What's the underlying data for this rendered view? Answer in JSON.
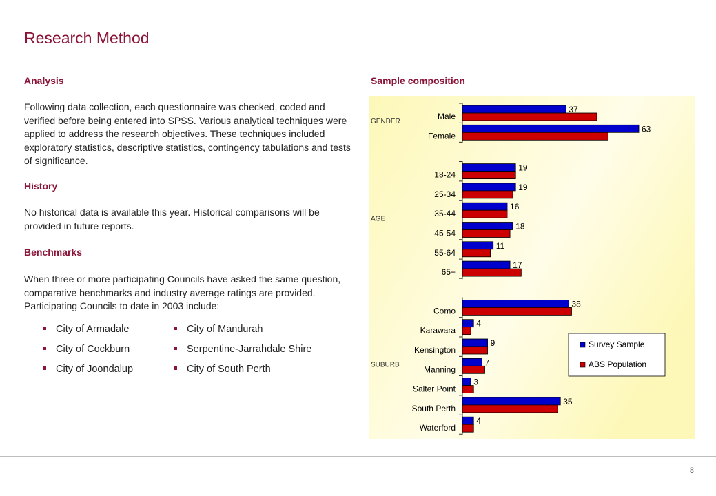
{
  "page": {
    "title": "Research Method",
    "page_number": "8"
  },
  "left": {
    "analysis_heading": "Analysis",
    "analysis_text": "Following data collection, each questionnaire was checked, coded and verified before being entered into SPSS. Various analytical techniques were applied to address the research objectives. These techniques included exploratory statistics, descriptive statistics, contingency tabulations and tests of significance.",
    "history_heading": "History",
    "history_text": "No historical data is available this year.  Historical comparisons will be provided in future reports.",
    "benchmarks_heading": "Benchmarks",
    "benchmarks_text": "When three or more participating Councils have asked the same question, comparative benchmarks and industry average ratings are provided. Participating Councils to date in 2003 include:",
    "councils_col1": [
      "City of Armadale",
      "City of Cockburn",
      "City of Joondalup"
    ],
    "councils_col2": [
      "City of Mandurah",
      "Serpentine-Jarrahdale Shire",
      "City of South Perth"
    ]
  },
  "right": {
    "chart_heading": "Sample composition"
  },
  "chart_data": {
    "type": "bar",
    "orientation": "horizontal",
    "groups": [
      {
        "name": "GENDER",
        "categories": [
          "Male",
          "Female"
        ]
      },
      {
        "name": "AGE",
        "categories": [
          "18-24",
          "25-34",
          "35-44",
          "45-54",
          "55-64",
          "65+"
        ]
      },
      {
        "name": "SUBURB",
        "categories": [
          "Como",
          "Karawara",
          "Kensington",
          "Manning",
          "Salter Point",
          "South Perth",
          "Waterford"
        ]
      }
    ],
    "categories": [
      "Male",
      "Female",
      "18-24",
      "25-34",
      "35-44",
      "45-54",
      "55-64",
      "65+",
      "Como",
      "Karawara",
      "Kensington",
      "Manning",
      "Salter Point",
      "South Perth",
      "Waterford"
    ],
    "series": [
      {
        "name": "Survey Sample",
        "color": "#0000cc",
        "values": [
          37,
          63,
          19,
          19,
          16,
          18,
          11,
          17,
          38,
          4,
          9,
          7,
          3,
          35,
          4
        ]
      },
      {
        "name": "ABS Population",
        "color": "#cc0000",
        "values": [
          48,
          52,
          19,
          18,
          16,
          17,
          10,
          21,
          39,
          3,
          9,
          8,
          4,
          34,
          4
        ]
      }
    ],
    "data_labels_series": "Survey Sample",
    "legend_position": "right",
    "background": "#fdf8b8",
    "xlim": [
      0,
      63
    ]
  }
}
